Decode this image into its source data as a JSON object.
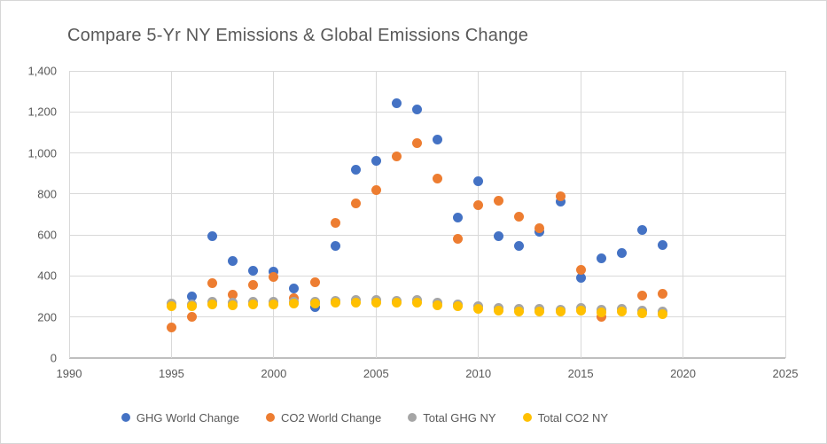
{
  "title": "Compare 5-Yr NY Emissions & Global Emissions Change",
  "colors": {
    "blue": "#4472C4",
    "orange": "#ED7D31",
    "gray": "#A5A5A5",
    "yellow": "#FFC000",
    "gridline": "#D9D9D9",
    "axis_text": "#595959"
  },
  "chart_data": {
    "type": "scatter",
    "title": "Compare 5-Yr NY Emissions & Global Emissions Change",
    "xlabel": "",
    "ylabel": "",
    "xlim": [
      1990,
      2025
    ],
    "ylim": [
      0,
      1400
    ],
    "grid": true,
    "legend_position": "bottom",
    "x_ticks": [
      {
        "value": 1990,
        "label": "1990"
      },
      {
        "value": 1995,
        "label": "1995"
      },
      {
        "value": 2000,
        "label": "2000"
      },
      {
        "value": 2005,
        "label": "2005"
      },
      {
        "value": 2010,
        "label": "2010"
      },
      {
        "value": 2015,
        "label": "2015"
      },
      {
        "value": 2020,
        "label": "2020"
      },
      {
        "value": 2025,
        "label": "2025"
      }
    ],
    "y_ticks": [
      {
        "value": 0,
        "label": "0"
      },
      {
        "value": 200,
        "label": "200"
      },
      {
        "value": 400,
        "label": "400"
      },
      {
        "value": 600,
        "label": "600"
      },
      {
        "value": 800,
        "label": "800"
      },
      {
        "value": 1000,
        "label": "1,000"
      },
      {
        "value": 1200,
        "label": "1,200"
      },
      {
        "value": 1400,
        "label": "1,400"
      }
    ],
    "x": [
      1995,
      1996,
      1997,
      1998,
      1999,
      2000,
      2001,
      2002,
      2003,
      2004,
      2005,
      2006,
      2007,
      2008,
      2009,
      2010,
      2011,
      2012,
      2013,
      2014,
      2015,
      2016,
      2017,
      2018,
      2019
    ],
    "series": [
      {
        "name": "GHG World Change",
        "color": "#4472C4",
        "values": [
          null,
          300,
          595,
          475,
          425,
          420,
          340,
          250,
          548,
          918,
          960,
          1243,
          1210,
          1064,
          686,
          860,
          593,
          545,
          615,
          762,
          393,
          485,
          513,
          625,
          553
        ]
      },
      {
        "name": "CO2 World Change",
        "color": "#ED7D31",
        "values": [
          150,
          200,
          365,
          307,
          357,
          395,
          293,
          370,
          660,
          756,
          817,
          982,
          1048,
          876,
          580,
          746,
          765,
          688,
          632,
          790,
          430,
          200,
          null,
          306,
          313
        ]
      },
      {
        "name": "Total GHG NY",
        "color": "#A5A5A5",
        "values": [
          266,
          263,
          273,
          270,
          273,
          274,
          276,
          276,
          280,
          283,
          283,
          280,
          282,
          270,
          262,
          252,
          245,
          241,
          241,
          237,
          242,
          234,
          238,
          230,
          226
        ]
      },
      {
        "name": "Total CO2 NY",
        "color": "#FFC000",
        "values": [
          254,
          252,
          262,
          259,
          262,
          262,
          265,
          265,
          269,
          271,
          270,
          268,
          270,
          258,
          251,
          240,
          233,
          229,
          229,
          225,
          230,
          222,
          226,
          218,
          214
        ]
      }
    ]
  },
  "legend": {
    "items": [
      {
        "label": "GHG World Change",
        "color": "#4472C4"
      },
      {
        "label": "CO2 World Change",
        "color": "#ED7D31"
      },
      {
        "label": "Total GHG NY",
        "color": "#A5A5A5"
      },
      {
        "label": "Total CO2 NY",
        "color": "#FFC000"
      }
    ]
  }
}
